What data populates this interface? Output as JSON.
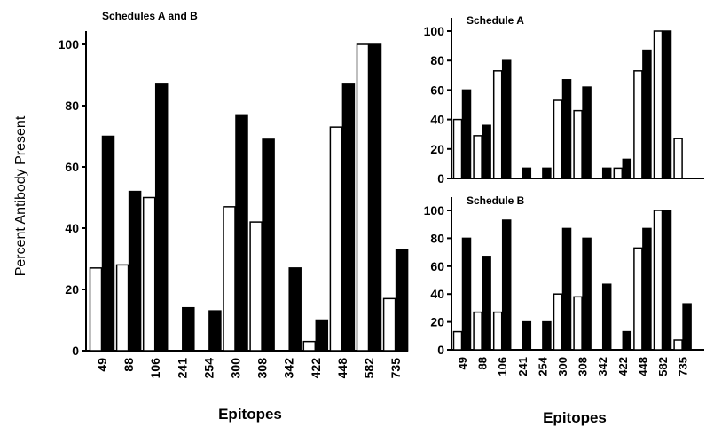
{
  "chart_data": [
    {
      "type": "bar",
      "title": "Schedules A and B",
      "xlabel": "Epitopes",
      "ylabel": "Percent Antibody Present",
      "ylim": [
        0,
        100
      ],
      "yticks": [
        0,
        20,
        40,
        60,
        80,
        100
      ],
      "categories": [
        "49",
        "88",
        "106",
        "241",
        "254",
        "300",
        "308",
        "342",
        "422",
        "448",
        "582",
        "735"
      ],
      "series": [
        {
          "style": "open",
          "color": "#ffffff",
          "values": [
            27,
            28,
            50,
            0,
            0,
            47,
            42,
            0,
            3,
            73,
            100,
            17
          ]
        },
        {
          "style": "filled",
          "color": "#000000",
          "values": [
            70,
            52,
            87,
            14,
            13,
            77,
            69,
            27,
            10,
            87,
            100,
            33
          ]
        }
      ],
      "grid": false
    },
    {
      "type": "bar",
      "title": "Schedule A",
      "xlabel": "",
      "ylabel": "",
      "ylim": [
        0,
        100
      ],
      "yticks": [
        0,
        20,
        40,
        60,
        80,
        100
      ],
      "categories": [
        "49",
        "88",
        "106",
        "241",
        "254",
        "300",
        "308",
        "342",
        "422",
        "448",
        "582",
        "735"
      ],
      "series": [
        {
          "style": "open",
          "color": "#ffffff",
          "values": [
            40,
            29,
            73,
            0,
            0,
            53,
            46,
            0,
            7,
            73,
            100,
            27
          ]
        },
        {
          "style": "filled",
          "color": "#000000",
          "values": [
            60,
            36,
            80,
            7,
            7,
            67,
            62,
            7,
            13,
            87,
            100,
            0
          ]
        }
      ],
      "grid": false
    },
    {
      "type": "bar",
      "title": "Schedule B",
      "xlabel": "Epitopes",
      "ylabel": "",
      "ylim": [
        0,
        100
      ],
      "yticks": [
        0,
        20,
        40,
        60,
        80,
        100
      ],
      "categories": [
        "49",
        "88",
        "106",
        "241",
        "254",
        "300",
        "308",
        "342",
        "422",
        "448",
        "582",
        "735"
      ],
      "series": [
        {
          "style": "open",
          "color": "#ffffff",
          "values": [
            13,
            27,
            27,
            0,
            0,
            40,
            38,
            0,
            0,
            73,
            100,
            7
          ]
        },
        {
          "style": "filled",
          "color": "#000000",
          "values": [
            80,
            67,
            93,
            20,
            20,
            87,
            80,
            47,
            13,
            87,
            100,
            33
          ]
        }
      ],
      "grid": false
    }
  ]
}
